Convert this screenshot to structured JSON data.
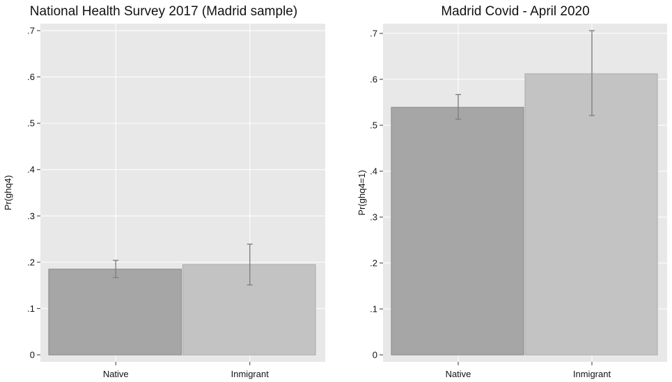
{
  "chart_data": [
    {
      "type": "bar",
      "title": "National Health Survey 2017 (Madrid sample)",
      "xlabel": "",
      "ylabel": "Pr(ghq4)",
      "categories": [
        "Native",
        "Inmigrant"
      ],
      "values": [
        0.185,
        0.195
      ],
      "ci_low": [
        0.167,
        0.151
      ],
      "ci_high": [
        0.204,
        0.239
      ],
      "ylim": [
        0,
        0.7
      ],
      "yticks": [
        0,
        0.1,
        0.2,
        0.3,
        0.4,
        0.5,
        0.6,
        0.7
      ],
      "ytick_labels": [
        "0",
        ".1",
        ".2",
        ".3",
        ".4",
        ".5",
        ".6",
        ".7"
      ],
      "grid": true,
      "bar_colors": [
        "#a6a6a6",
        "#c3c3c3"
      ]
    },
    {
      "type": "bar",
      "title": "Madrid Covid - April 2020",
      "xlabel": "",
      "ylabel": "Pr(ghq4=1)",
      "categories": [
        "Native",
        "Inmigrant"
      ],
      "values": [
        0.539,
        0.612
      ],
      "ci_low": [
        0.513,
        0.521
      ],
      "ci_high": [
        0.567,
        0.706
      ],
      "ylim": [
        0,
        0.7
      ],
      "yticks": [
        0,
        0.1,
        0.2,
        0.3,
        0.4,
        0.5,
        0.6,
        0.7
      ],
      "ytick_labels": [
        "0",
        ".1",
        ".2",
        ".3",
        ".4",
        ".5",
        ".6",
        ".7"
      ],
      "grid": true,
      "bar_colors": [
        "#a6a6a6",
        "#c3c3c3"
      ]
    }
  ]
}
